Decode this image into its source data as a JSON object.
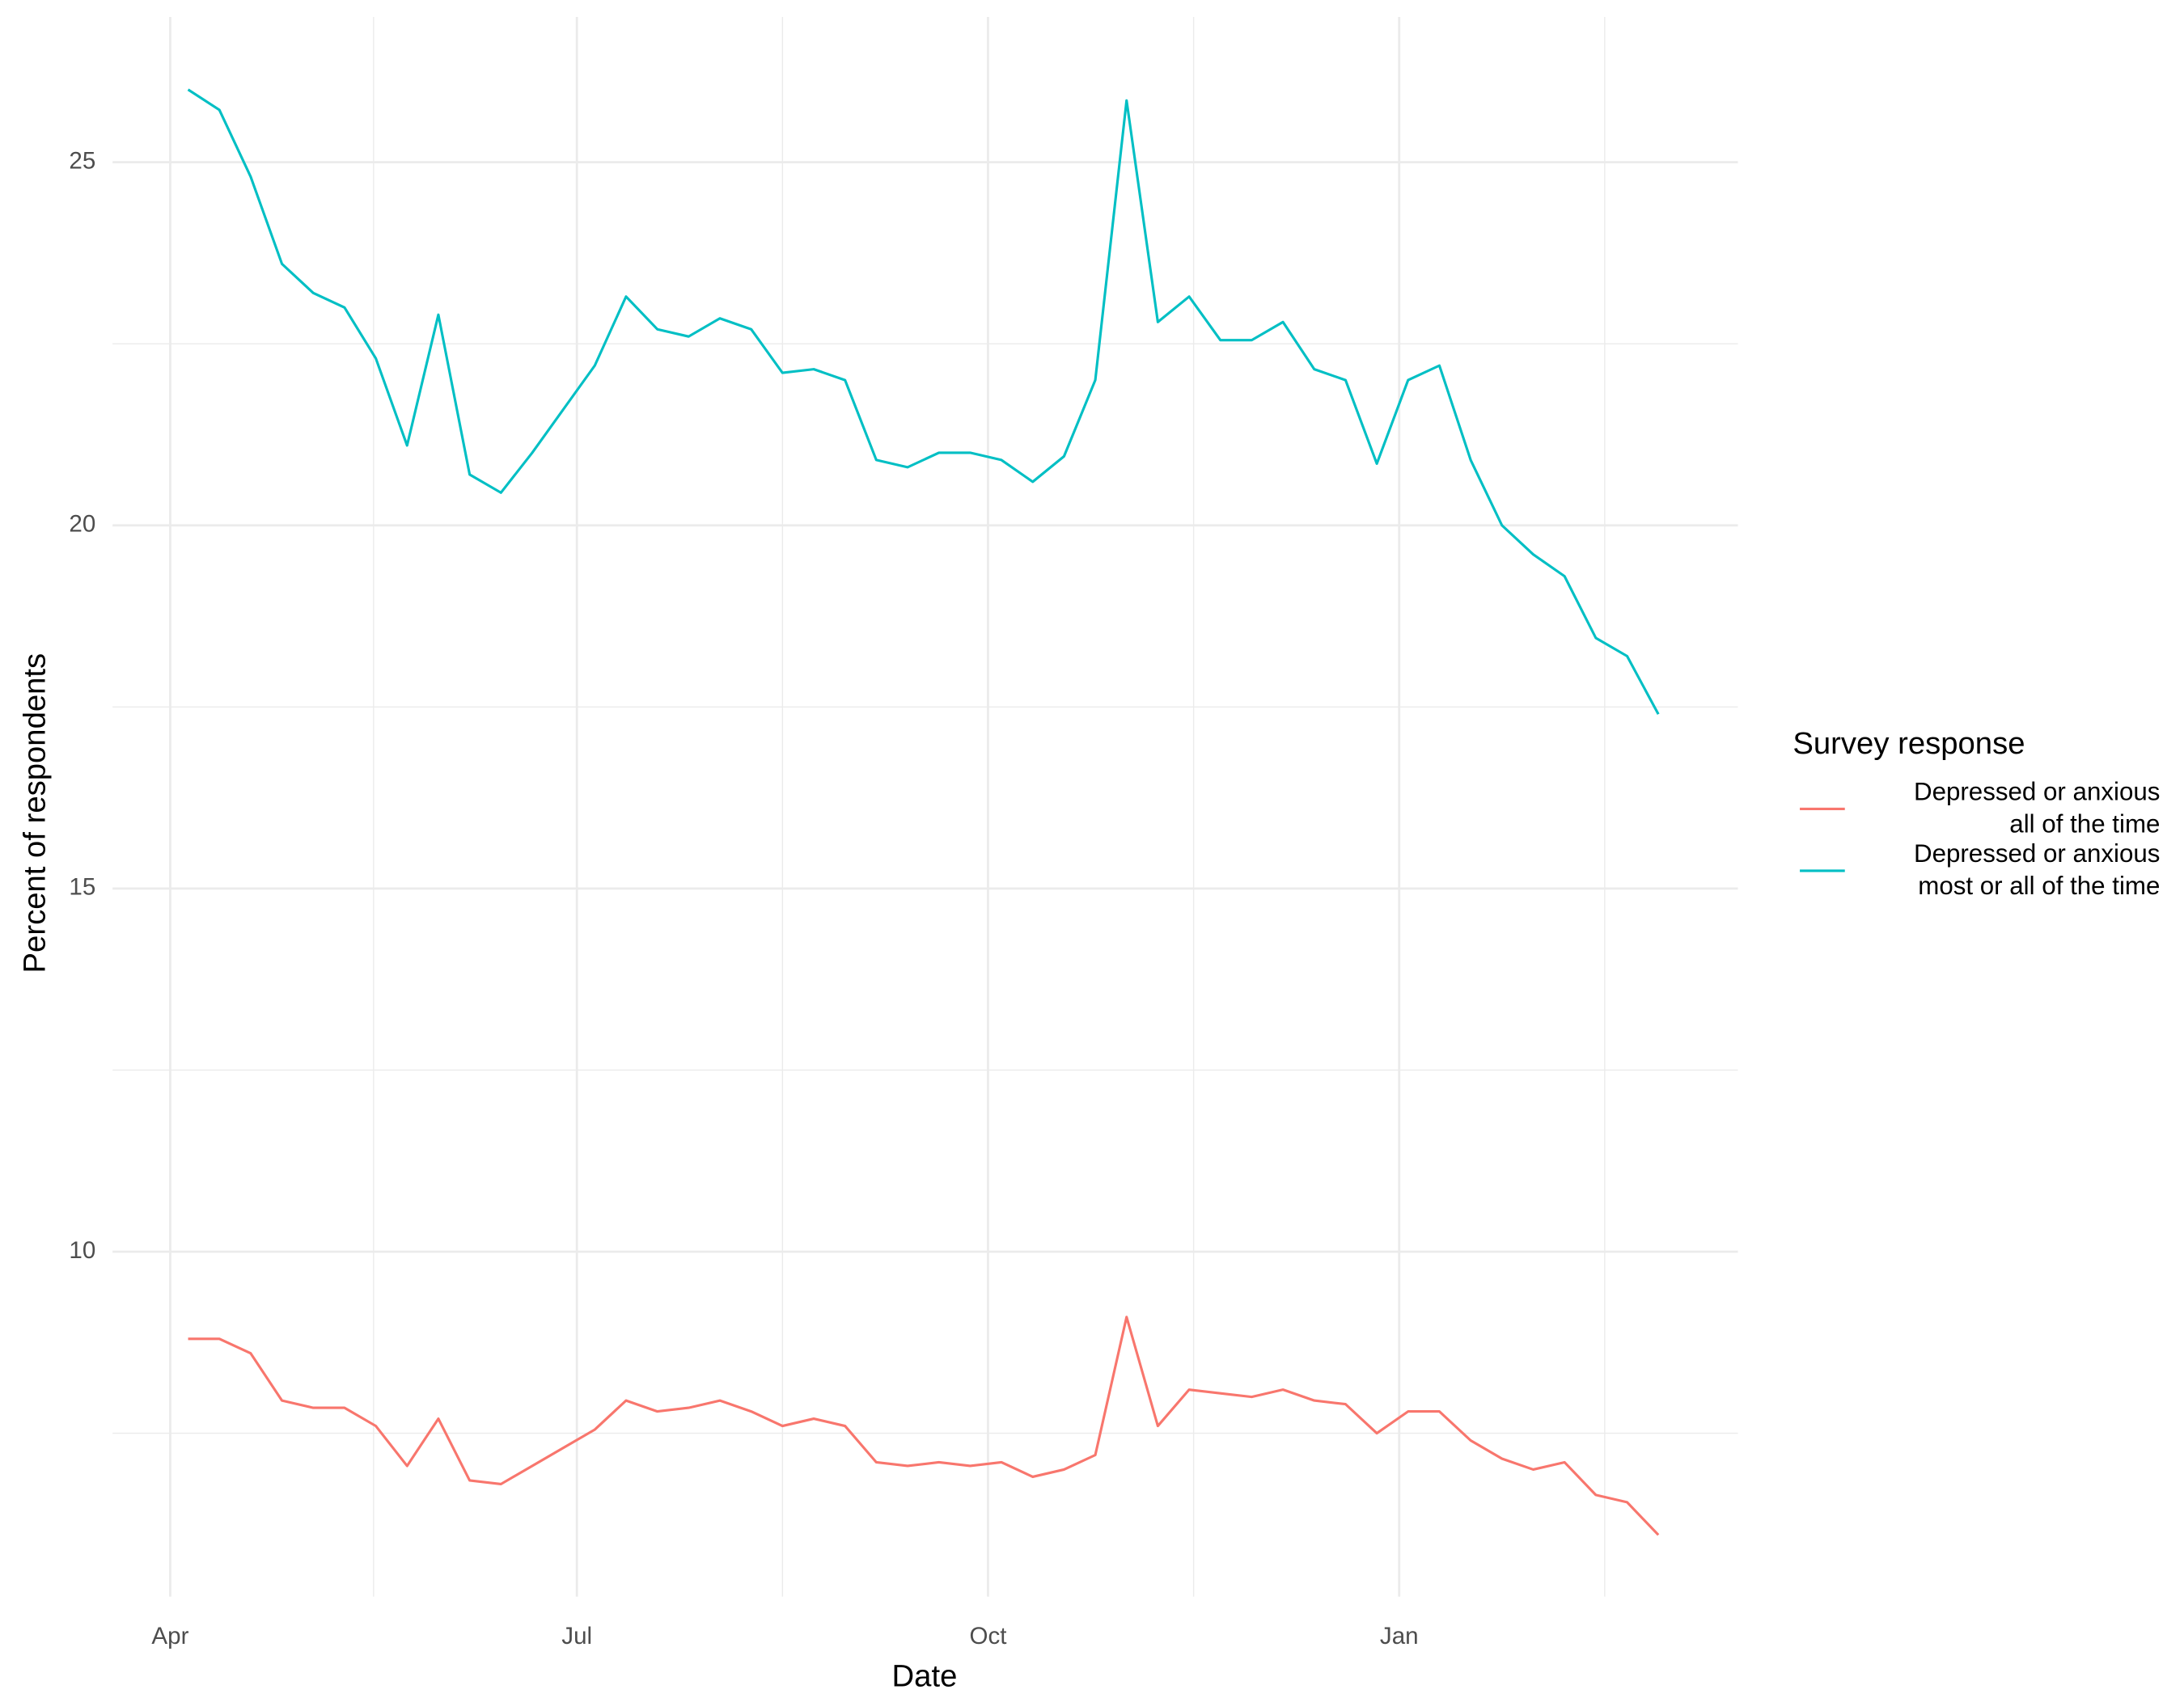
{
  "chart_data": {
    "type": "line",
    "xlabel": "Date",
    "ylabel": "Percent of respondents",
    "legend_title": "Survey response",
    "x": [
      4,
      11,
      18,
      25,
      32,
      39,
      46,
      53,
      60,
      67,
      74,
      81,
      88,
      95,
      102,
      109,
      116,
      123,
      130,
      137,
      144,
      151,
      158,
      165,
      172,
      179,
      186,
      193,
      200,
      207,
      214,
      221,
      228,
      235,
      242,
      249,
      256,
      263,
      270,
      277,
      284,
      291,
      298,
      305,
      312,
      319,
      326,
      333
    ],
    "series": [
      {
        "name": "Depressed or anxious\n all of the time",
        "color": "#F8766D",
        "values": [
          8.8,
          8.8,
          8.6,
          7.95,
          7.85,
          7.85,
          7.6,
          7.05,
          7.7,
          6.85,
          6.8,
          7.05,
          7.3,
          7.55,
          7.95,
          7.8,
          7.85,
          7.95,
          7.8,
          7.6,
          7.7,
          7.6,
          7.1,
          7.05,
          7.1,
          7.05,
          7.1,
          6.9,
          7.0,
          7.2,
          9.1,
          7.6,
          8.1,
          8.05,
          8.0,
          8.1,
          7.95,
          7.9,
          7.5,
          7.8,
          7.8,
          7.4,
          7.15,
          7.0,
          7.1,
          6.65,
          6.55,
          6.1
        ]
      },
      {
        "name": "Depressed or anxious\n most or all of the time",
        "color": "#00BFC4",
        "values": [
          26.0,
          25.72,
          24.8,
          23.6,
          23.2,
          23.0,
          22.3,
          21.1,
          22.9,
          20.7,
          20.45,
          21.0,
          21.6,
          22.2,
          23.15,
          22.7,
          22.6,
          22.85,
          22.7,
          22.1,
          22.15,
          22.0,
          20.9,
          20.8,
          21.0,
          21.0,
          20.9,
          20.6,
          20.95,
          22.0,
          25.85,
          22.8,
          23.15,
          22.55,
          22.55,
          22.8,
          22.15,
          22.0,
          20.85,
          22.0,
          22.2,
          20.9,
          20.0,
          19.6,
          19.3,
          18.45,
          18.2,
          17.4
        ]
      }
    ],
    "xlim": [
      -12.9,
      350.8
    ],
    "xticks": [
      {
        "value": 0,
        "label": "Apr"
      },
      {
        "value": 91,
        "label": "Jul"
      },
      {
        "value": 183,
        "label": "Oct"
      },
      {
        "value": 275,
        "label": "Jan"
      }
    ],
    "ylim": [
      5.25,
      27.0
    ],
    "yticks": [
      10,
      15,
      20,
      25
    ],
    "grid": true,
    "legend": "right"
  }
}
